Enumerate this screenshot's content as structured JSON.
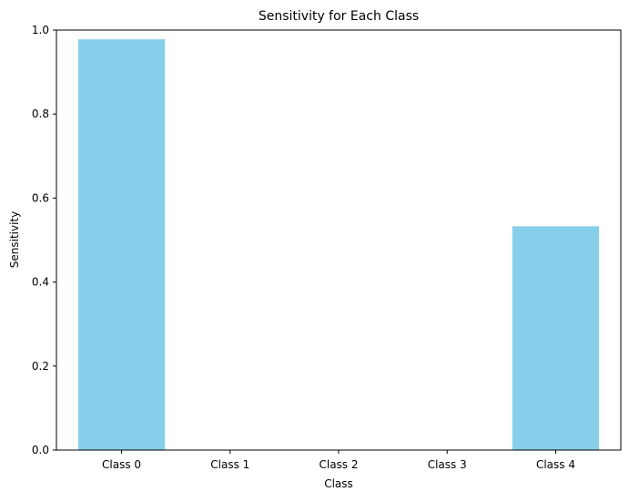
{
  "chart_data": {
    "type": "bar",
    "title": "Sensitivity for Each Class",
    "xlabel": "Class",
    "ylabel": "Sensitivity",
    "categories": [
      "Class 0",
      "Class 1",
      "Class 2",
      "Class 3",
      "Class 4"
    ],
    "values": [
      0.978,
      0.0,
      0.0,
      0.0,
      0.533
    ],
    "ylim": [
      0,
      1.0
    ],
    "yticks": [
      "0.0",
      "0.2",
      "0.4",
      "0.6",
      "0.8",
      "1.0"
    ],
    "grid": false,
    "legend": "none",
    "colors": {
      "bar": "#87ceeb",
      "axis": "#000000",
      "background": "#ffffff"
    }
  }
}
